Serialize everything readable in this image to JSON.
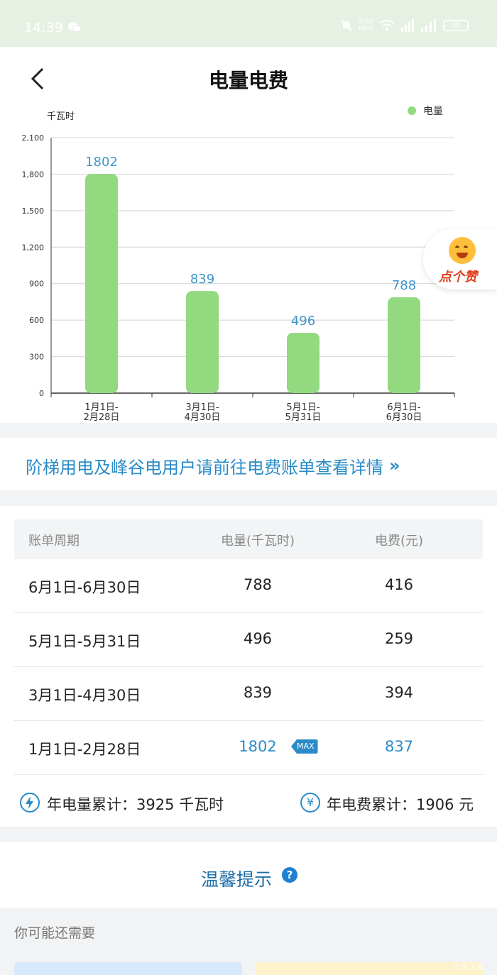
{
  "status_bar": {
    "time": "14:39",
    "speed_top": "0.02",
    "speed_unit": "KB/S",
    "battery": "38"
  },
  "header": {
    "title": "电量电费"
  },
  "like_bubble": {
    "label": "点个赞"
  },
  "chart_data": {
    "type": "bar",
    "unit_label": "千瓦时",
    "legend": [
      "电量"
    ],
    "categories": [
      [
        "1月1日-",
        "2月28日"
      ],
      [
        "3月1日-",
        "4月30日"
      ],
      [
        "5月1日-",
        "5月31日"
      ],
      [
        "6月1日-",
        "6月30日"
      ]
    ],
    "values": [
      1802,
      839,
      496,
      788
    ],
    "ylim": [
      0,
      2100
    ],
    "yticks": [
      "0",
      "300",
      "600",
      "900",
      "1,200",
      "1,500",
      "1,800",
      "2,100"
    ],
    "grid": true,
    "bar_color": "#93d97f",
    "label_color": "#3f96cc"
  },
  "notice": {
    "text": "阶梯用电及峰谷电用户请前往电费账单查看详情",
    "chevron": "»"
  },
  "table": {
    "headers": [
      "账单周期",
      "电量(千瓦时)",
      "电费(元)"
    ],
    "rows": [
      {
        "period": "6月1日-6月30日",
        "kwh": "788",
        "fee": "416"
      },
      {
        "period": "5月1日-5月31日",
        "kwh": "496",
        "fee": "259"
      },
      {
        "period": "3月1日-4月30日",
        "kwh": "839",
        "fee": "394"
      },
      {
        "period": "1月1日-2月28日",
        "kwh": "1802",
        "fee": "837",
        "max": "MAX"
      }
    ]
  },
  "totals": {
    "kwh_label": "年电量累计：3925 千瓦时",
    "fee_label": "年电费累计：1906 元",
    "fee_icon": "¥"
  },
  "tips": {
    "title": "温馨提示",
    "icon": "?"
  },
  "need": {
    "label": "你可能还需要",
    "watermark": "汽车之家"
  },
  "accent": "#2a8bc8"
}
